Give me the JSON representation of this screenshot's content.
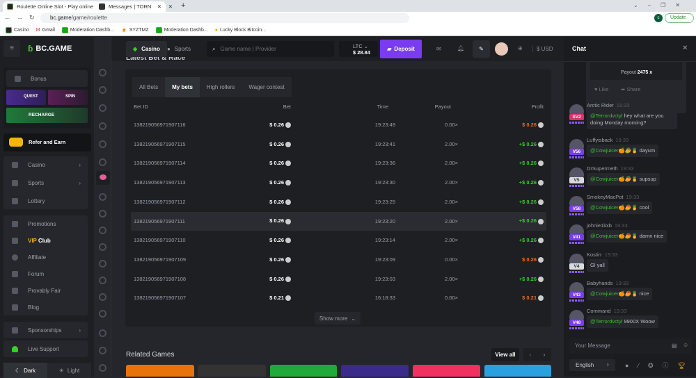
{
  "browser": {
    "tabs": [
      {
        "title": "Roulette Online Slot - Play online"
      },
      {
        "title": "Messages | TORN"
      }
    ],
    "url_host": "bc.game",
    "url_path": "/game/roulette",
    "update_label": "Update",
    "profile_initial": "c",
    "bookmarks": [
      "Casino",
      "Gmail",
      "Moderation Dashb...",
      "SYZTMZ",
      "Moderation Dashb...",
      "Lucky Block Bitcoin..."
    ]
  },
  "brand": "BC.GAME",
  "header": {
    "casino": "Casino",
    "sports": "Sports",
    "search_placeholder": "Game name | Provider",
    "currency": "LTC",
    "balance": "$ 28.84",
    "deposit": "Deposit",
    "fiat": "$ USD"
  },
  "sidebar": {
    "bonus": "Bonus",
    "quest": "QUEST",
    "spin": "SPIN",
    "recharge": "RECHARGE",
    "refer": "Refer and Earn",
    "nav": [
      "Casino",
      "Sports",
      "Lottery"
    ],
    "links": [
      "Promotions",
      "Affiliate",
      "Forum",
      "Provably Fair",
      "Blog"
    ],
    "vip_a": "VIP",
    "vip_b": " Club",
    "sponsorships": "Sponsorships",
    "support": "Live Support",
    "dark": "Dark",
    "light": "Light"
  },
  "main": {
    "section_title": "Latest Bet & Race",
    "tabs": [
      "All Bets",
      "My bets",
      "High rollers",
      "Wager contest"
    ],
    "active_tab": "My bets",
    "columns": [
      "Bet ID",
      "Bet",
      "Time",
      "Payout",
      "Profit"
    ],
    "rows": [
      {
        "id": "138219056971907116",
        "bet": "$ 0.26",
        "time": "19:23:49",
        "payout": "0.00×",
        "profit": "$ 0.26",
        "result": "loss"
      },
      {
        "id": "138219056971907115",
        "bet": "$ 0.26",
        "time": "19:23:41",
        "payout": "2.00×",
        "profit": "+$ 0.26",
        "result": "win"
      },
      {
        "id": "138219056971907114",
        "bet": "$ 0.26",
        "time": "19:23:36",
        "payout": "2.00×",
        "profit": "+$ 0.26",
        "result": "win"
      },
      {
        "id": "138219056971907113",
        "bet": "$ 0.26",
        "time": "19:23:30",
        "payout": "2.00×",
        "profit": "+$ 0.26",
        "result": "win"
      },
      {
        "id": "138219056971907112",
        "bet": "$ 0.26",
        "time": "19:23:25",
        "payout": "2.00×",
        "profit": "+$ 0.26",
        "result": "win"
      },
      {
        "id": "138219056971907111",
        "bet": "$ 0.26",
        "time": "19:23:20",
        "payout": "2.00×",
        "profit": "+$ 0.26",
        "result": "win"
      },
      {
        "id": "138219056971907110",
        "bet": "$ 0.26",
        "time": "19:23:14",
        "payout": "2.00×",
        "profit": "+$ 0.26",
        "result": "win"
      },
      {
        "id": "138219056971907109",
        "bet": "$ 0.26",
        "time": "19:23:09",
        "payout": "0.00×",
        "profit": "$ 0.26",
        "result": "loss"
      },
      {
        "id": "138219056971907108",
        "bet": "$ 0.26",
        "time": "19:23:03",
        "payout": "2.00×",
        "profit": "+$ 0.26",
        "result": "win"
      },
      {
        "id": "138219056971907107",
        "bet": "$ 0.21",
        "time": "16:18:33",
        "payout": "0.00×",
        "profit": "$ 0.21",
        "result": "loss"
      }
    ],
    "show_more": "Show more",
    "related_title": "Related Games",
    "view_all": "View all"
  },
  "chat": {
    "title": "Chat",
    "payout_label": "Payout",
    "payout_value": "2475 x",
    "like": "Like",
    "share": "Share",
    "messages": [
      {
        "user": "Arctic Rider",
        "time": "19:33",
        "level": "SV2",
        "mention": "@Terrordvctyl",
        "text": " hey what are you doing Monday morning?"
      },
      {
        "user": "Luffyisback",
        "time": "19:33",
        "level": "V56",
        "mention": "@Cowjuicer",
        "text": "🍊🥭🍍 dayum"
      },
      {
        "user": "DrSupermeth",
        "time": "19:33",
        "level": "V5",
        "mention": "@Cowjuicer",
        "text": "🍊🥭🍍 supsup"
      },
      {
        "user": "SmokeyMacPot",
        "time": "19:33",
        "level": "V58",
        "mention": "@Cowjuicer",
        "text": "🍊🥭🍍 cool"
      },
      {
        "user": "johnie1kxb",
        "time": "19:33",
        "level": "V41",
        "mention": "@Cowjuicer",
        "text": "🍊🥭🍍 damn nice"
      },
      {
        "user": "Kostirr",
        "time": "19:33",
        "level": "V4",
        "mention": "",
        "text": "Gl yall"
      },
      {
        "user": "Babyhands",
        "time": "19:33",
        "level": "V43",
        "mention": "@Cowjuicer",
        "text": "🍊🥭🍍 nice"
      },
      {
        "user": "Command",
        "time": "19:33",
        "level": "V48",
        "mention": "@Terrordvctyl",
        "text": " 9900X Woow"
      }
    ],
    "input_placeholder": "Your Message",
    "language": "English"
  },
  "colors": {
    "accent": "#7a3cf0",
    "green": "#35d02a",
    "orange": "#ef6a16",
    "bg": "#24262b"
  }
}
